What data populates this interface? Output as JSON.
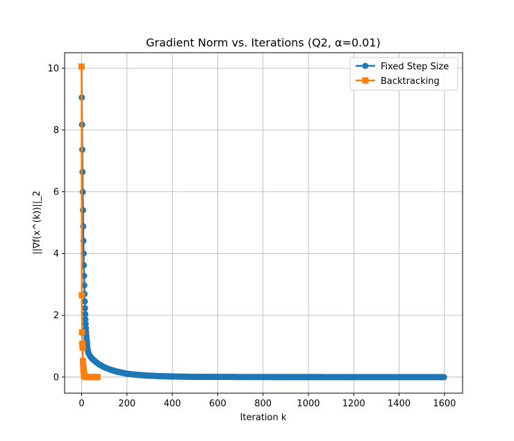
{
  "chart_data": {
    "type": "line",
    "title": "Gradient Norm vs. Iterations (Q2, α=0.01)",
    "xlabel": "Iteration k",
    "ylabel": "||∇f(x^(k))||_2",
    "xlim": [
      -75,
      1680
    ],
    "ylim": [
      -0.52,
      10.5
    ],
    "xticks": [
      0,
      200,
      400,
      600,
      800,
      1000,
      1200,
      1400,
      1600
    ],
    "yticks": [
      0,
      2,
      4,
      6,
      8,
      10
    ],
    "grid": true,
    "legend_position": "top-right",
    "series": [
      {
        "name": "Fixed Step Size",
        "color": "#1f77b4",
        "marker": "circle",
        "x": [
          0,
          1,
          2,
          3,
          4,
          5,
          6,
          7,
          8,
          9,
          10,
          11,
          12,
          13,
          14,
          15,
          16,
          17,
          18,
          19,
          20,
          21,
          22,
          23,
          24,
          25,
          26,
          28,
          30,
          33,
          36,
          40,
          45,
          50,
          55,
          60,
          70,
          80,
          90,
          100,
          120,
          140,
          160,
          180,
          200,
          230,
          260,
          300,
          350,
          400,
          450,
          500,
          600,
          700,
          800,
          900,
          1000,
          1100,
          1200,
          1300,
          1400,
          1500,
          1600
        ],
        "y": [
          10.05,
          9.05,
          8.17,
          7.36,
          6.64,
          5.99,
          5.4,
          4.88,
          4.41,
          4.0,
          3.62,
          3.28,
          2.97,
          2.69,
          2.45,
          2.23,
          2.04,
          1.87,
          1.72,
          1.58,
          1.46,
          1.35,
          1.25,
          1.15,
          1.07,
          0.99,
          0.92,
          0.85,
          0.79,
          0.73,
          0.69,
          0.65,
          0.61,
          0.57,
          0.54,
          0.51,
          0.45,
          0.4,
          0.36,
          0.32,
          0.26,
          0.21,
          0.17,
          0.14,
          0.11,
          0.085,
          0.065,
          0.045,
          0.03,
          0.02,
          0.013,
          0.009,
          0.005,
          0.003,
          0.002,
          0.001,
          0.001,
          0.0,
          0.0,
          0.0,
          0.0,
          0.0,
          0.0
        ]
      },
      {
        "name": "Backtracking",
        "color": "#ff7f0e",
        "marker": "square",
        "x": [
          0,
          1,
          2,
          3,
          4,
          5,
          6,
          7,
          8,
          9,
          10,
          11,
          12,
          14,
          16,
          18,
          20,
          23,
          26,
          30,
          35,
          40,
          45,
          50,
          55,
          60,
          65,
          70
        ],
        "y": [
          10.05,
          2.65,
          1.45,
          1.08,
          1.0,
          0.95,
          0.52,
          0.38,
          0.28,
          0.18,
          0.12,
          0.08,
          0.05,
          0.03,
          0.02,
          0.01,
          0.005,
          0.002,
          0.001,
          0.0,
          0.0,
          0.0,
          0.0,
          0.0,
          0.0,
          0.0,
          0.0,
          0.0
        ]
      }
    ]
  }
}
